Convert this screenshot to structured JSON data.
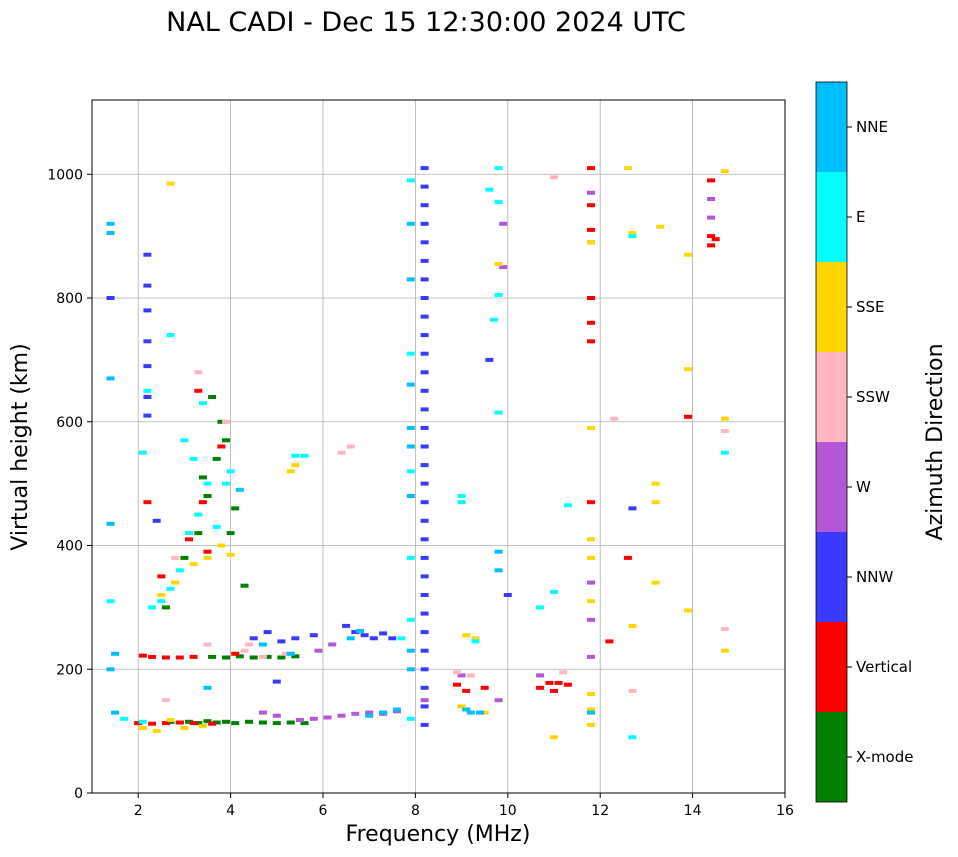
{
  "chart_data": {
    "type": "scatter",
    "title": "NAL CADI - Dec 15 12:30:00 2024 UTC",
    "xlabel": "Frequency (MHz)",
    "ylabel": "Virtual height (km)",
    "xlim": [
      1,
      16
    ],
    "ylim": [
      0,
      1120
    ],
    "xticks": [
      2,
      4,
      6,
      8,
      10,
      12,
      14,
      16
    ],
    "yticks": [
      0,
      200,
      400,
      600,
      800,
      1000
    ],
    "grid": true,
    "colorbar": {
      "label": "Azimuth Direction",
      "categories": [
        {
          "name": "X-mode",
          "color": "#008000"
        },
        {
          "name": "Vertical",
          "color": "#ff0000"
        },
        {
          "name": "NNW",
          "color": "#3a3aff"
        },
        {
          "name": "W",
          "color": "#b357d6"
        },
        {
          "name": "SSW",
          "color": "#ffb6c1"
        },
        {
          "name": "SSE",
          "color": "#ffd700"
        },
        {
          "name": "E",
          "color": "#00ffff"
        },
        {
          "name": "NNE",
          "color": "#00bfff"
        }
      ]
    },
    "series": [
      {
        "name": "X-mode",
        "points": [
          [
            2.7,
            115
          ],
          [
            2.9,
            114
          ],
          [
            3.1,
            115
          ],
          [
            3.3,
            113
          ],
          [
            3.5,
            116
          ],
          [
            3.7,
            114
          ],
          [
            3.9,
            115
          ],
          [
            4.1,
            113
          ],
          [
            4.4,
            115
          ],
          [
            4.7,
            114
          ],
          [
            5.0,
            113
          ],
          [
            5.3,
            114
          ],
          [
            5.6,
            113
          ],
          [
            3.6,
            220
          ],
          [
            3.9,
            219
          ],
          [
            4.2,
            221
          ],
          [
            4.5,
            219
          ],
          [
            4.8,
            220
          ],
          [
            5.1,
            219
          ],
          [
            5.4,
            221
          ],
          [
            3.0,
            380
          ],
          [
            3.3,
            420
          ],
          [
            3.5,
            480
          ],
          [
            3.7,
            540
          ],
          [
            3.8,
            600
          ],
          [
            3.6,
            640
          ],
          [
            4.1,
            460
          ],
          [
            4.0,
            420
          ],
          [
            3.4,
            510
          ],
          [
            3.9,
            570
          ],
          [
            4.3,
            335
          ],
          [
            2.6,
            300
          ]
        ]
      },
      {
        "name": "Vertical",
        "points": [
          [
            2.0,
            113
          ],
          [
            2.3,
            112
          ],
          [
            2.6,
            113
          ],
          [
            2.9,
            114
          ],
          [
            3.2,
            113
          ],
          [
            3.6,
            112
          ],
          [
            2.1,
            222
          ],
          [
            2.3,
            220
          ],
          [
            2.6,
            219
          ],
          [
            2.9,
            219
          ],
          [
            3.2,
            220
          ],
          [
            4.1,
            225
          ],
          [
            3.5,
            390
          ],
          [
            3.3,
            650
          ],
          [
            3.8,
            560
          ],
          [
            3.4,
            470
          ],
          [
            3.1,
            410
          ],
          [
            2.5,
            350
          ],
          [
            2.2,
            470
          ],
          [
            8.9,
            175
          ],
          [
            9.1,
            165
          ],
          [
            10.7,
            170
          ],
          [
            10.9,
            178
          ],
          [
            11.1,
            178
          ],
          [
            11.3,
            175
          ],
          [
            11.0,
            165
          ],
          [
            11.8,
            1010
          ],
          [
            11.8,
            950
          ],
          [
            11.8,
            910
          ],
          [
            11.8,
            800
          ],
          [
            11.8,
            760
          ],
          [
            11.8,
            730
          ],
          [
            11.8,
            470
          ],
          [
            12.2,
            245
          ],
          [
            12.6,
            380
          ],
          [
            13.9,
            608
          ],
          [
            14.4,
            990
          ],
          [
            14.4,
            900
          ],
          [
            14.4,
            885
          ],
          [
            14.5,
            895
          ],
          [
            9.5,
            170
          ]
        ]
      },
      {
        "name": "NNW",
        "points": [
          [
            2.2,
            870
          ],
          [
            2.2,
            820
          ],
          [
            2.2,
            780
          ],
          [
            2.2,
            730
          ],
          [
            2.2,
            690
          ],
          [
            2.2,
            610
          ],
          [
            8.2,
            1010
          ],
          [
            8.2,
            980
          ],
          [
            8.2,
            950
          ],
          [
            8.2,
            920
          ],
          [
            8.2,
            890
          ],
          [
            8.2,
            860
          ],
          [
            8.2,
            830
          ],
          [
            8.2,
            800
          ],
          [
            8.2,
            770
          ],
          [
            8.2,
            740
          ],
          [
            8.2,
            710
          ],
          [
            8.2,
            680
          ],
          [
            8.2,
            650
          ],
          [
            8.2,
            620
          ],
          [
            8.2,
            590
          ],
          [
            8.2,
            560
          ],
          [
            8.2,
            530
          ],
          [
            8.2,
            500
          ],
          [
            8.2,
            470
          ],
          [
            8.2,
            440
          ],
          [
            8.2,
            410
          ],
          [
            8.2,
            380
          ],
          [
            8.2,
            350
          ],
          [
            8.2,
            320
          ],
          [
            8.2,
            290
          ],
          [
            8.2,
            260
          ],
          [
            8.2,
            230
          ],
          [
            8.2,
            200
          ],
          [
            8.2,
            170
          ],
          [
            8.2,
            140
          ],
          [
            8.2,
            110
          ],
          [
            6.7,
            260
          ],
          [
            6.9,
            255
          ],
          [
            7.1,
            250
          ],
          [
            7.3,
            258
          ],
          [
            7.5,
            250
          ],
          [
            4.5,
            250
          ],
          [
            4.8,
            260
          ],
          [
            5.1,
            245
          ],
          [
            5.4,
            250
          ],
          [
            5.8,
            255
          ],
          [
            6.5,
            270
          ],
          [
            2.4,
            440
          ],
          [
            2.2,
            640
          ],
          [
            9.6,
            700
          ],
          [
            10.0,
            320
          ],
          [
            12.7,
            460
          ],
          [
            5.0,
            180
          ],
          [
            1.4,
            800
          ]
        ]
      },
      {
        "name": "W",
        "points": [
          [
            5.5,
            118
          ],
          [
            5.8,
            120
          ],
          [
            6.1,
            122
          ],
          [
            6.4,
            125
          ],
          [
            6.7,
            128
          ],
          [
            7.0,
            130
          ],
          [
            7.3,
            128
          ],
          [
            7.6,
            132
          ],
          [
            4.7,
            130
          ],
          [
            5.0,
            125
          ],
          [
            8.2,
            150
          ],
          [
            11.8,
            970
          ],
          [
            11.8,
            890
          ],
          [
            11.8,
            340
          ],
          [
            11.8,
            280
          ],
          [
            11.8,
            220
          ],
          [
            9.0,
            190
          ],
          [
            9.8,
            150
          ],
          [
            9.9,
            850
          ],
          [
            9.9,
            920
          ],
          [
            14.4,
            930
          ],
          [
            14.4,
            960
          ],
          [
            10.7,
            190
          ],
          [
            5.9,
            230
          ],
          [
            6.2,
            240
          ]
        ]
      },
      {
        "name": "SSW",
        "points": [
          [
            3.5,
            240
          ],
          [
            4.3,
            230
          ],
          [
            4.7,
            220
          ],
          [
            5.2,
            225
          ],
          [
            6.4,
            550
          ],
          [
            6.6,
            560
          ],
          [
            8.9,
            195
          ],
          [
            9.2,
            190
          ],
          [
            11.2,
            195
          ],
          [
            12.3,
            605
          ],
          [
            12.7,
            165
          ],
          [
            14.7,
            585
          ],
          [
            14.7,
            265
          ],
          [
            2.6,
            150
          ],
          [
            3.3,
            680
          ],
          [
            2.8,
            380
          ],
          [
            3.9,
            600
          ],
          [
            4.4,
            240
          ],
          [
            11.0,
            995
          ]
        ]
      },
      {
        "name": "SSE",
        "points": [
          [
            2.1,
            105
          ],
          [
            2.4,
            100
          ],
          [
            2.7,
            118
          ],
          [
            3.0,
            105
          ],
          [
            3.4,
            108
          ],
          [
            2.5,
            320
          ],
          [
            2.8,
            340
          ],
          [
            3.2,
            370
          ],
          [
            3.5,
            380
          ],
          [
            3.8,
            400
          ],
          [
            4.0,
            385
          ],
          [
            5.3,
            520
          ],
          [
            5.4,
            530
          ],
          [
            9.1,
            255
          ],
          [
            9.3,
            250
          ],
          [
            9.5,
            130
          ],
          [
            9.0,
            140
          ],
          [
            11.8,
            890
          ],
          [
            11.8,
            590
          ],
          [
            11.8,
            410
          ],
          [
            11.8,
            380
          ],
          [
            11.8,
            310
          ],
          [
            11.8,
            160
          ],
          [
            11.8,
            110
          ],
          [
            11.8,
            135
          ],
          [
            12.6,
            1010
          ],
          [
            12.7,
            905
          ],
          [
            13.2,
            500
          ],
          [
            13.2,
            470
          ],
          [
            13.2,
            340
          ],
          [
            12.7,
            270
          ],
          [
            13.3,
            915
          ],
          [
            13.9,
            870
          ],
          [
            13.9,
            685
          ],
          [
            13.9,
            295
          ],
          [
            14.7,
            1005
          ],
          [
            14.7,
            605
          ],
          [
            14.7,
            230
          ],
          [
            2.7,
            985
          ],
          [
            11.0,
            90
          ],
          [
            9.8,
            855
          ]
        ]
      },
      {
        "name": "E",
        "points": [
          [
            1.7,
            120
          ],
          [
            2.1,
            115
          ],
          [
            2.3,
            300
          ],
          [
            2.5,
            310
          ],
          [
            2.7,
            330
          ],
          [
            2.9,
            360
          ],
          [
            3.1,
            420
          ],
          [
            3.3,
            450
          ],
          [
            3.5,
            500
          ],
          [
            3.2,
            540
          ],
          [
            4.0,
            520
          ],
          [
            3.7,
            430
          ],
          [
            3.0,
            570
          ],
          [
            2.7,
            740
          ],
          [
            3.4,
            630
          ],
          [
            2.2,
            650
          ],
          [
            3.9,
            500
          ],
          [
            7.9,
            120
          ],
          [
            7.9,
            280
          ],
          [
            7.9,
            380
          ],
          [
            7.9,
            520
          ],
          [
            7.9,
            710
          ],
          [
            7.9,
            990
          ],
          [
            9.0,
            480
          ],
          [
            9.0,
            470
          ],
          [
            9.3,
            245
          ],
          [
            9.8,
            1010
          ],
          [
            9.8,
            955
          ],
          [
            9.8,
            805
          ],
          [
            9.7,
            765
          ],
          [
            9.8,
            615
          ],
          [
            9.6,
            975
          ],
          [
            11.3,
            465
          ],
          [
            11.0,
            325
          ],
          [
            10.7,
            300
          ],
          [
            12.7,
            900
          ],
          [
            12.7,
            90
          ],
          [
            14.7,
            550
          ],
          [
            5.4,
            545
          ],
          [
            5.6,
            545
          ],
          [
            7.7,
            250
          ],
          [
            2.1,
            550
          ],
          [
            1.4,
            310
          ]
        ]
      },
      {
        "name": "NNE",
        "points": [
          [
            1.4,
            920
          ],
          [
            1.4,
            905
          ],
          [
            1.4,
            670
          ],
          [
            1.4,
            435
          ],
          [
            1.4,
            200
          ],
          [
            1.5,
            130
          ],
          [
            1.5,
            225
          ],
          [
            7.9,
            920
          ],
          [
            7.9,
            830
          ],
          [
            7.9,
            660
          ],
          [
            7.9,
            590
          ],
          [
            7.9,
            560
          ],
          [
            7.9,
            480
          ],
          [
            7.9,
            230
          ],
          [
            7.9,
            200
          ],
          [
            7.0,
            125
          ],
          [
            7.3,
            130
          ],
          [
            7.6,
            135
          ],
          [
            6.8,
            262
          ],
          [
            6.6,
            250
          ],
          [
            4.2,
            490
          ],
          [
            9.1,
            135
          ],
          [
            9.2,
            130
          ],
          [
            9.4,
            130
          ],
          [
            9.8,
            360
          ],
          [
            9.8,
            390
          ],
          [
            11.8,
            130
          ],
          [
            4.7,
            240
          ],
          [
            5.3,
            225
          ],
          [
            3.5,
            170
          ]
        ]
      }
    ]
  }
}
